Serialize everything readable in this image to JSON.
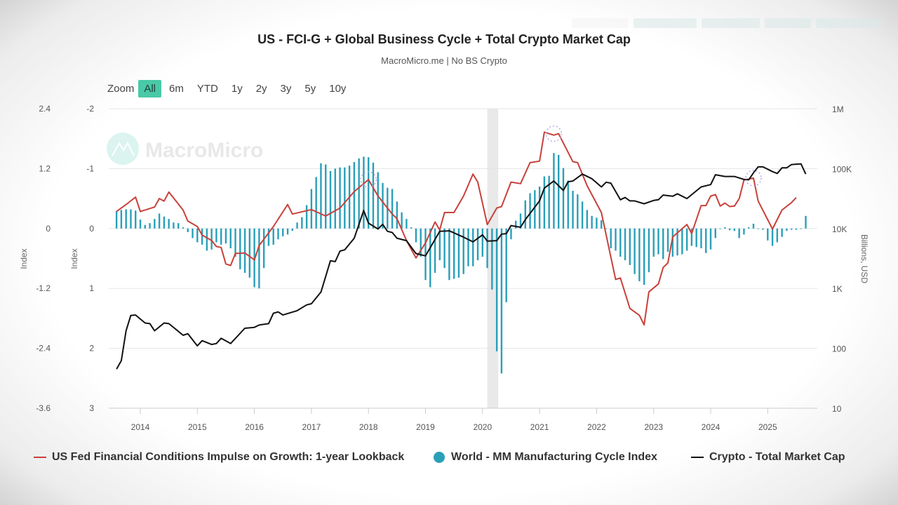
{
  "header": {
    "title": "US - FCI-G + Global Business Cycle + Total Crypto Market Cap",
    "subtitle": "MacroMicro.me | No BS Crypto",
    "watermark": "MacroMicro"
  },
  "zoom": {
    "label": "Zoom",
    "options": [
      "All",
      "6m",
      "YTD",
      "1y",
      "2y",
      "3y",
      "5y",
      "10y"
    ],
    "selected": "All"
  },
  "chart_data": {
    "type": "line+bar",
    "title": "US - FCI-G + Global Business Cycle + Total Crypto Market Cap",
    "subtitle": "MacroMicro.me | No BS Crypto",
    "grid": true,
    "legend_position": "bottom",
    "x_axis": {
      "type": "date",
      "ticks": [
        "2014",
        "2015",
        "2016",
        "2017",
        "2018",
        "2019",
        "2020",
        "2021",
        "2022",
        "2023",
        "2024",
        "2025"
      ]
    },
    "y_axes": [
      {
        "id": "left1",
        "label": "Index",
        "range": [
          -3.6,
          2.4
        ],
        "ticks": [
          "2.4",
          "1.2",
          "0",
          "-1.2",
          "-2.4",
          "-3.6"
        ]
      },
      {
        "id": "left2",
        "label": "Index",
        "range": [
          -2,
          3
        ],
        "reversed": true,
        "ticks": [
          "-2",
          "-1",
          "0",
          "1",
          "2",
          "3"
        ]
      },
      {
        "id": "right",
        "label": "Billions, USD",
        "scale": "log",
        "range": [
          10,
          1000000
        ],
        "ticks": [
          "1M",
          "100K",
          "10K",
          "1K",
          "100",
          "10"
        ]
      }
    ],
    "shaded_band": {
      "from": "2020-02",
      "to": "2020-04",
      "color": "#e3e3e3"
    },
    "series": [
      {
        "name": "US Fed Financial Conditions Impulse on Growth: 1-year Lookback",
        "type": "line",
        "axis": "left1",
        "color": "#c8413a",
        "points": [
          [
            "2013-08",
            0.34
          ],
          [
            "2013-10",
            0.48
          ],
          [
            "2013-12",
            0.63
          ],
          [
            "2014-01",
            0.34
          ],
          [
            "2014-04",
            0.43
          ],
          [
            "2014-05",
            0.6
          ],
          [
            "2014-06",
            0.55
          ],
          [
            "2014-07",
            0.73
          ],
          [
            "2014-10",
            0.37
          ],
          [
            "2014-11",
            0.15
          ],
          [
            "2015-01",
            0.04
          ],
          [
            "2015-02",
            -0.13
          ],
          [
            "2015-04",
            -0.24
          ],
          [
            "2015-05",
            -0.36
          ],
          [
            "2015-06",
            -0.38
          ],
          [
            "2015-07",
            -0.71
          ],
          [
            "2015-08",
            -0.74
          ],
          [
            "2015-09",
            -0.5
          ],
          [
            "2015-11",
            -0.49
          ],
          [
            "2016-01",
            -0.63
          ],
          [
            "2016-02",
            -0.34
          ],
          [
            "2016-05",
            0.04
          ],
          [
            "2016-08",
            0.48
          ],
          [
            "2016-09",
            0.29
          ],
          [
            "2017-01",
            0.38
          ],
          [
            "2017-04",
            0.25
          ],
          [
            "2017-07",
            0.41
          ],
          [
            "2017-10",
            0.74
          ],
          [
            "2018-01",
            0.98
          ],
          [
            "2018-03",
            0.65
          ],
          [
            "2018-06",
            0.29
          ],
          [
            "2018-07",
            0.2
          ],
          [
            "2018-09",
            -0.24
          ],
          [
            "2018-11",
            -0.59
          ],
          [
            "2019-01",
            -0.29
          ],
          [
            "2019-03",
            0.13
          ],
          [
            "2019-04",
            -0.03
          ],
          [
            "2019-05",
            0.32
          ],
          [
            "2019-07",
            0.32
          ],
          [
            "2019-09",
            0.65
          ],
          [
            "2019-11",
            1.09
          ],
          [
            "2019-12",
            0.93
          ],
          [
            "2020-02",
            0.08
          ],
          [
            "2020-04",
            0.41
          ],
          [
            "2020-05",
            0.44
          ],
          [
            "2020-07",
            0.93
          ],
          [
            "2020-09",
            0.9
          ],
          [
            "2020-11",
            1.32
          ],
          [
            "2021-01",
            1.35
          ],
          [
            "2021-02",
            1.93
          ],
          [
            "2021-04",
            1.87
          ],
          [
            "2021-05",
            1.9
          ],
          [
            "2021-08",
            1.34
          ],
          [
            "2021-09",
            1.32
          ],
          [
            "2021-11",
            0.86
          ],
          [
            "2022-02",
            0.32
          ],
          [
            "2022-05",
            -1.02
          ],
          [
            "2022-06",
            -0.99
          ],
          [
            "2022-08",
            -1.6
          ],
          [
            "2022-10",
            -1.74
          ],
          [
            "2022-11",
            -1.93
          ],
          [
            "2022-12",
            -1.27
          ],
          [
            "2023-02",
            -1.11
          ],
          [
            "2023-03",
            -0.78
          ],
          [
            "2023-04",
            -0.69
          ],
          [
            "2023-05",
            -0.17
          ],
          [
            "2023-08",
            0.08
          ],
          [
            "2023-09",
            -0.1
          ],
          [
            "2023-11",
            0.46
          ],
          [
            "2023-12",
            0.46
          ],
          [
            "2024-01",
            0.65
          ],
          [
            "2024-02",
            0.68
          ],
          [
            "2024-03",
            0.45
          ],
          [
            "2024-04",
            0.51
          ],
          [
            "2024-05",
            0.44
          ],
          [
            "2024-06",
            0.45
          ],
          [
            "2024-07",
            0.6
          ],
          [
            "2024-08",
            0.97
          ],
          [
            "2024-10",
            1.01
          ],
          [
            "2024-11",
            0.55
          ],
          [
            "2025-02",
            -0.01
          ],
          [
            "2025-04",
            0.37
          ],
          [
            "2025-06",
            0.52
          ],
          [
            "2025-07",
            0.62
          ]
        ]
      },
      {
        "name": "World - MM Manufacturing Cycle Index",
        "type": "bar",
        "axis": "left2",
        "color": "#2a9fb8",
        "values_by_year_monthly": {
          "2013": [
            null,
            null,
            null,
            null,
            null,
            null,
            null,
            -0.29,
            -0.31,
            -0.32,
            -0.32,
            -0.3
          ],
          "2014": [
            -0.15,
            -0.06,
            -0.09,
            -0.16,
            -0.25,
            -0.2,
            -0.16,
            -0.1,
            -0.09,
            -0.02,
            0.06,
            0.16
          ],
          "2015": [
            0.23,
            0.27,
            0.37,
            0.35,
            0.23,
            0.27,
            0.25,
            0.33,
            0.47,
            0.68,
            0.74,
            0.82
          ],
          "2016": [
            0.98,
            1.0,
            0.66,
            0.29,
            0.27,
            0.18,
            0.13,
            0.1,
            0.04,
            -0.1,
            -0.19,
            -0.39
          ],
          "2017": [
            -0.66,
            -0.86,
            -1.09,
            -1.07,
            -0.96,
            -1.0,
            -1.02,
            -1.02,
            -1.05,
            -1.11,
            -1.17,
            -1.2
          ],
          "2018": [
            -1.19,
            -1.1,
            -0.94,
            -0.76,
            -0.68,
            -0.66,
            -0.45,
            -0.27,
            -0.16,
            -0.02,
            0.23,
            0.47
          ],
          "2019": [
            0.86,
            0.98,
            0.74,
            0.53,
            0.66,
            0.86,
            0.84,
            0.82,
            0.76,
            0.63,
            0.63,
            0.53
          ],
          "2020": [
            0.47,
            0.66,
            1.02,
            2.05,
            2.42,
            1.23,
            0.18,
            -0.13,
            -0.25,
            -0.47,
            -0.59,
            -0.64
          ],
          "2021": [
            -0.7,
            -0.87,
            -0.88,
            -1.26,
            -1.23,
            -1.01,
            -0.8,
            -0.63,
            -0.57,
            -0.45,
            -0.31,
            -0.21
          ],
          "2022": [
            -0.18,
            -0.14,
            0.0,
            0.33,
            0.37,
            0.47,
            0.53,
            0.61,
            0.76,
            0.88,
            0.94,
            0.73
          ],
          "2023": [
            0.47,
            0.43,
            0.51,
            0.39,
            0.47,
            0.45,
            0.43,
            0.37,
            0.29,
            0.31,
            0.33,
            0.41
          ],
          "2024": [
            0.35,
            0.16,
            0.01,
            -0.02,
            0.03,
            0.04,
            0.16,
            0.1,
            -0.02,
            -0.08,
            0.0,
            0.02
          ],
          "2025": [
            0.2,
            0.29,
            0.23,
            0.14,
            0.04,
            0.02,
            0.02,
            0.01,
            -0.21
          ]
        }
      },
      {
        "name": "Crypto - Total Market Cap",
        "type": "line",
        "axis": "right",
        "color": "#111111",
        "points": [
          [
            "2013-08",
            45
          ],
          [
            "2013-09",
            62
          ],
          [
            "2013-10",
            196
          ],
          [
            "2013-11",
            353
          ],
          [
            "2013-12",
            360
          ],
          [
            "2014-02",
            265
          ],
          [
            "2014-03",
            258
          ],
          [
            "2014-04",
            196
          ],
          [
            "2014-06",
            265
          ],
          [
            "2014-07",
            258
          ],
          [
            "2014-10",
            165
          ],
          [
            "2014-11",
            175
          ],
          [
            "2015-01",
            110
          ],
          [
            "2015-02",
            134
          ],
          [
            "2015-04",
            116
          ],
          [
            "2015-05",
            120
          ],
          [
            "2015-06",
            147
          ],
          [
            "2015-08",
            120
          ],
          [
            "2015-11",
            216
          ],
          [
            "2016-01",
            224
          ],
          [
            "2016-02",
            245
          ],
          [
            "2016-04",
            258
          ],
          [
            "2016-05",
            385
          ],
          [
            "2016-06",
            405
          ],
          [
            "2016-07",
            360
          ],
          [
            "2016-10",
            425
          ],
          [
            "2016-12",
            530
          ],
          [
            "2017-01",
            555
          ],
          [
            "2017-03",
            870
          ],
          [
            "2017-05",
            2900
          ],
          [
            "2017-06",
            2800
          ],
          [
            "2017-07",
            4200
          ],
          [
            "2017-08",
            4400
          ],
          [
            "2017-10",
            6900
          ],
          [
            "2017-12",
            20000
          ],
          [
            "2018-01",
            12300
          ],
          [
            "2018-03",
            9800
          ],
          [
            "2018-04",
            11750
          ],
          [
            "2018-05",
            8980
          ],
          [
            "2018-06",
            8580
          ],
          [
            "2018-07",
            6900
          ],
          [
            "2018-09",
            6270
          ],
          [
            "2018-11",
            3820
          ],
          [
            "2019-01",
            3490
          ],
          [
            "2019-04",
            8980
          ],
          [
            "2019-06",
            9140
          ],
          [
            "2019-09",
            7180
          ],
          [
            "2019-11",
            5990
          ],
          [
            "2020-01",
            7840
          ],
          [
            "2020-02",
            6160
          ],
          [
            "2020-04",
            6270
          ],
          [
            "2020-05",
            8060
          ],
          [
            "2020-06",
            8210
          ],
          [
            "2020-07",
            11200
          ],
          [
            "2020-09",
            10500
          ],
          [
            "2020-10",
            14100
          ],
          [
            "2021-01",
            28900
          ],
          [
            "2021-02",
            47300
          ],
          [
            "2021-04",
            62000
          ],
          [
            "2021-06",
            43200
          ],
          [
            "2021-07",
            60400
          ],
          [
            "2021-08",
            62000
          ],
          [
            "2021-10",
            81000
          ],
          [
            "2021-12",
            67800
          ],
          [
            "2022-02",
            49500
          ],
          [
            "2022-03",
            59300
          ],
          [
            "2022-04",
            57300
          ],
          [
            "2022-06",
            30200
          ],
          [
            "2022-07",
            33000
          ],
          [
            "2022-08",
            28900
          ],
          [
            "2022-09",
            28900
          ],
          [
            "2022-11",
            25900
          ],
          [
            "2023-01",
            29400
          ],
          [
            "2023-02",
            30200
          ],
          [
            "2023-03",
            36200
          ],
          [
            "2023-05",
            34600
          ],
          [
            "2023-06",
            38000
          ],
          [
            "2023-08",
            31600
          ],
          [
            "2023-11",
            49500
          ],
          [
            "2024-01",
            54100
          ],
          [
            "2024-02",
            79000
          ],
          [
            "2024-04",
            74000
          ],
          [
            "2024-06",
            74000
          ],
          [
            "2024-08",
            66000
          ],
          [
            "2024-09",
            65000
          ],
          [
            "2024-10",
            85000
          ],
          [
            "2024-11",
            107000
          ],
          [
            "2024-12",
            107000
          ],
          [
            "2025-02",
            89000
          ],
          [
            "2025-03",
            83000
          ],
          [
            "2025-04",
            103000
          ],
          [
            "2025-05",
            103000
          ],
          [
            "2025-06",
            117000
          ],
          [
            "2025-08",
            120000
          ],
          [
            "2025-09",
            81000
          ]
        ]
      }
    ],
    "highlight_markers": [
      [
        "2018-01",
        0.98
      ],
      [
        "2021-04",
        1.9
      ],
      [
        "2024-10",
        1.01
      ]
    ]
  },
  "legend": {
    "items": [
      {
        "label": "US Fed Financial Conditions Impulse on Growth: 1-year Lookback",
        "color": "#c8413a"
      },
      {
        "label": "World - MM Manufacturing Cycle Index",
        "color": "#2a9fb8"
      },
      {
        "label": "Crypto - Total Market Cap",
        "color": "#111111"
      }
    ]
  }
}
